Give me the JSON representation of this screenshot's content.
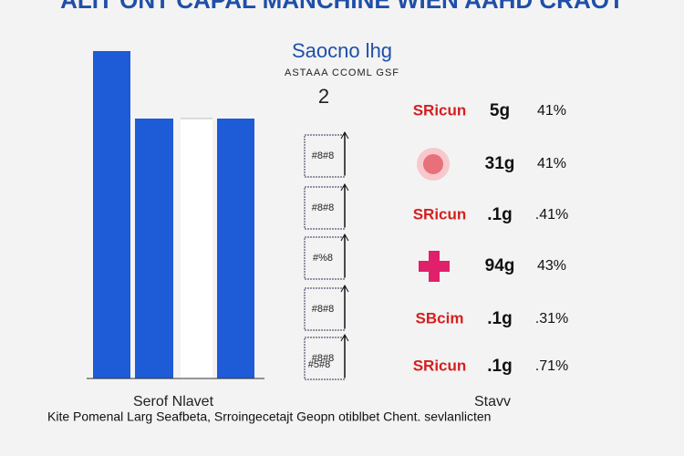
{
  "header": {
    "title": "ALIT ONT CAPAL MANCHINE WIEN AAHD CRAOT"
  },
  "left_panel": {
    "label": "Serof Nlavet"
  },
  "center_panel": {
    "title": "Saocno lhg",
    "subtitle": "ASTAAA CCOML GSF",
    "number": "2",
    "boxes": [
      "#8#8",
      "#8#8",
      "#%8",
      "#8#8",
      "#8#8",
      "#5#8"
    ]
  },
  "right_panel": {
    "label": "Stavv",
    "rows": [
      {
        "label": "SRicun",
        "value": "5g",
        "percent": "41%"
      },
      {
        "icon": "circle",
        "value": "31g",
        "percent": "41%"
      },
      {
        "label": "SRicun",
        "value": ".1g",
        "percent": ".41%"
      },
      {
        "icon": "cross",
        "value": "94g",
        "percent": "43%"
      },
      {
        "label": "SBcim",
        "value": ".1g",
        "percent": ".31%"
      },
      {
        "label": "SRicun",
        "value": ".1g",
        "percent": ".71%"
      }
    ]
  },
  "footer": {
    "text": "Kite Pomenal Larg  Seafbeta,  Srroingecetajt Geopn otiblbet Chent. sevlanlicten"
  }
}
